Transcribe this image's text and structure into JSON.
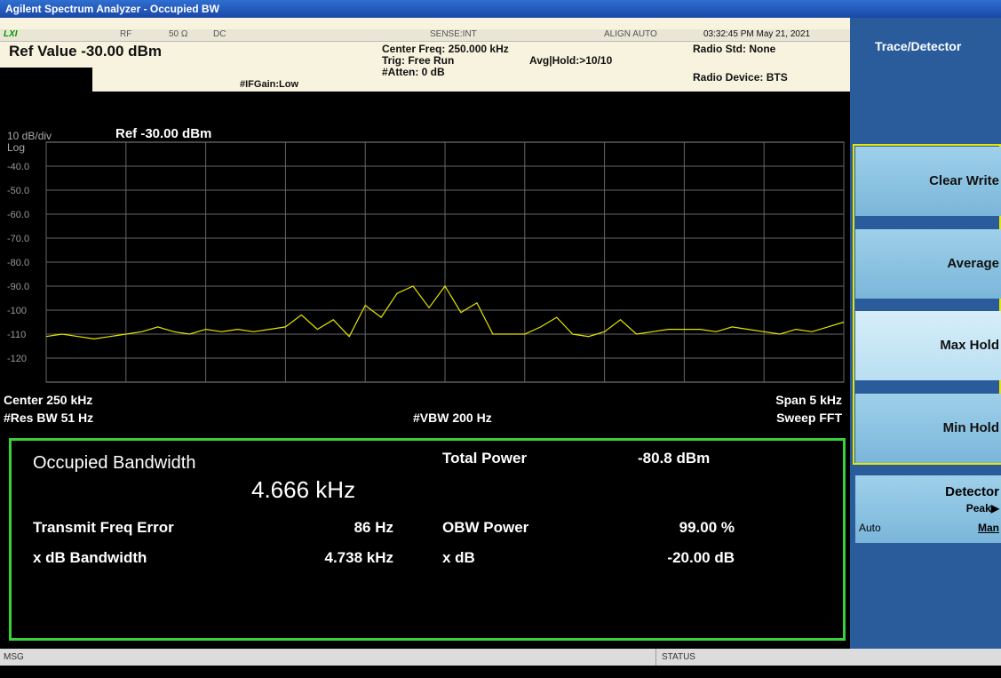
{
  "window_title": "Agilent Spectrum Analyzer - Occupied BW",
  "status_bar": {
    "lxi": "LXI",
    "rf": "RF",
    "impedance": "50 Ω",
    "coupling": "DC",
    "sense": "SENSE:INT",
    "align": "ALIGN AUTO",
    "datetime": "03:32:45 PM May 21, 2021"
  },
  "header": {
    "ref_value": "Ref Value -30.00 dBm",
    "if_gain": "#IFGain:Low",
    "center_freq": "Center Freq: 250.000 kHz",
    "trig": "Trig: Free Run",
    "avg_hold": "Avg|Hold:>10/10",
    "atten": "#Atten: 0 dB",
    "radio_std": "Radio Std: None",
    "radio_device": "Radio Device: BTS"
  },
  "chart_data": {
    "type": "line",
    "scale_div": "10 dB/div",
    "ref": "Ref -30.00 dBm",
    "scale_type": "Log",
    "x": [
      247.5,
      247.6,
      247.7,
      247.8,
      247.9,
      248.0,
      248.1,
      248.2,
      248.3,
      248.4,
      248.5,
      248.6,
      248.7,
      248.8,
      248.9,
      249.0,
      249.1,
      249.2,
      249.3,
      249.4,
      249.5,
      249.6,
      249.7,
      249.8,
      249.9,
      250.0,
      250.1,
      250.2,
      250.3,
      250.4,
      250.5,
      250.6,
      250.7,
      250.8,
      250.9,
      251.0,
      251.1,
      251.2,
      251.3,
      251.4,
      251.5,
      251.6,
      251.7,
      251.8,
      251.9,
      252.0,
      252.1,
      252.2,
      252.3,
      252.4,
      252.5
    ],
    "series": [
      {
        "color": "#e6e600",
        "values": [
          -111,
          -110,
          -111,
          -112,
          -111,
          -110,
          -109,
          -107,
          -109,
          -110,
          -108,
          -109,
          -108,
          -109,
          -108,
          -107,
          -102,
          -108,
          -104,
          -111,
          -98,
          -103,
          -93,
          -90,
          -99,
          -90,
          -101,
          -97,
          -110,
          -110,
          -110,
          -107,
          -103,
          -110,
          -111,
          -109,
          -104,
          -110,
          -109,
          -108,
          -108,
          -108,
          -109,
          -107,
          -108,
          -109,
          -110,
          -108,
          -109,
          -107,
          -105
        ]
      }
    ],
    "xlim": [
      247.5,
      252.5
    ],
    "xticks": [
      247.5,
      248,
      248.5,
      249,
      249.5,
      250,
      250.5,
      251,
      251.5,
      252,
      252.5
    ],
    "ylim": [
      -130,
      -30
    ],
    "yticks": [
      {
        "value": -40,
        "label": "-40.0"
      },
      {
        "value": -50,
        "label": "-50.0"
      },
      {
        "value": -60,
        "label": "-60.0"
      },
      {
        "value": -70,
        "label": "-70.0"
      },
      {
        "value": -80,
        "label": "-80.0"
      },
      {
        "value": -90,
        "label": "-90.0"
      },
      -100,
      -110,
      -120
    ],
    "grid": true,
    "center": "Center  250 kHz",
    "res_bw": "#Res BW  51 Hz",
    "vbw": "#VBW  200 Hz",
    "span": "Span 5 kHz",
    "sweep": "Sweep FFT"
  },
  "measurement": {
    "title": "Occupied Bandwidth",
    "obw": "4.666 kHz",
    "total_power_label": "Total Power",
    "total_power": "-80.8 dBm",
    "rows": [
      [
        "Transmit Freq Error",
        "86 Hz",
        "OBW Power",
        "99.00 %"
      ],
      [
        "x dB Bandwidth",
        "4.738 kHz",
        "x dB",
        "-20.00 dB"
      ]
    ]
  },
  "menu": {
    "title": "Trace/Detector",
    "items": [
      "Clear Write",
      "Average",
      "Max Hold",
      "Min Hold"
    ],
    "detector": {
      "label": "Detector",
      "value": "Peak▶",
      "auto": "Auto",
      "man": "Man"
    }
  },
  "footer": {
    "msg": "MSG",
    "status": "STATUS"
  }
}
